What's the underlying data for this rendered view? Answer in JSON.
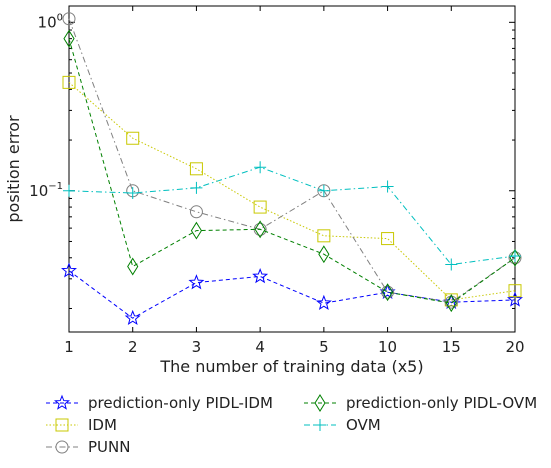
{
  "chart_data": {
    "type": "line",
    "xlabel": "The number of training data (x5)",
    "ylabel": "position error",
    "categories": [
      "1",
      "2",
      "3",
      "4",
      "5",
      "10",
      "15",
      "20"
    ],
    "y_scale": "log",
    "ylim": [
      0.0145,
      1.25
    ],
    "yticks": [
      {
        "value": 1,
        "base": "10",
        "exp": "0"
      },
      {
        "value": 0.1,
        "base": "10",
        "exp": "−1"
      }
    ],
    "grid": false,
    "legend_position": "below plot",
    "series": [
      {
        "name": "prediction-only PIDL-IDM",
        "color": "#0000ff",
        "marker": "star",
        "dash": "4,3",
        "values": [
          0.0335,
          0.0175,
          0.0285,
          0.031,
          0.0215,
          0.025,
          0.0218,
          0.0225
        ]
      },
      {
        "name": "IDM",
        "color": "#c8c800",
        "marker": "square",
        "dash": "1.5,2",
        "values": [
          0.44,
          0.205,
          0.135,
          0.08,
          0.054,
          0.052,
          0.0225,
          0.0255
        ]
      },
      {
        "name": "PUNN",
        "color": "#808080",
        "marker": "circle",
        "dash": "6,3,1.5,3",
        "values": [
          1.05,
          0.1,
          0.075,
          0.059,
          0.1,
          0.025,
          0.0218,
          0.04
        ]
      },
      {
        "name": "prediction-only PIDL-OVM",
        "color": "#008000",
        "marker": "diamond",
        "dash": "4,3",
        "values": [
          0.8,
          0.0355,
          0.058,
          0.059,
          0.042,
          0.025,
          0.0215,
          0.04
        ]
      },
      {
        "name": "OVM",
        "color": "#00bfbf",
        "marker": "plus",
        "dash": "6,3,1.5,3",
        "values": [
          0.1,
          0.097,
          0.104,
          0.138,
          0.1,
          0.106,
          0.0365,
          0.041
        ]
      }
    ]
  }
}
